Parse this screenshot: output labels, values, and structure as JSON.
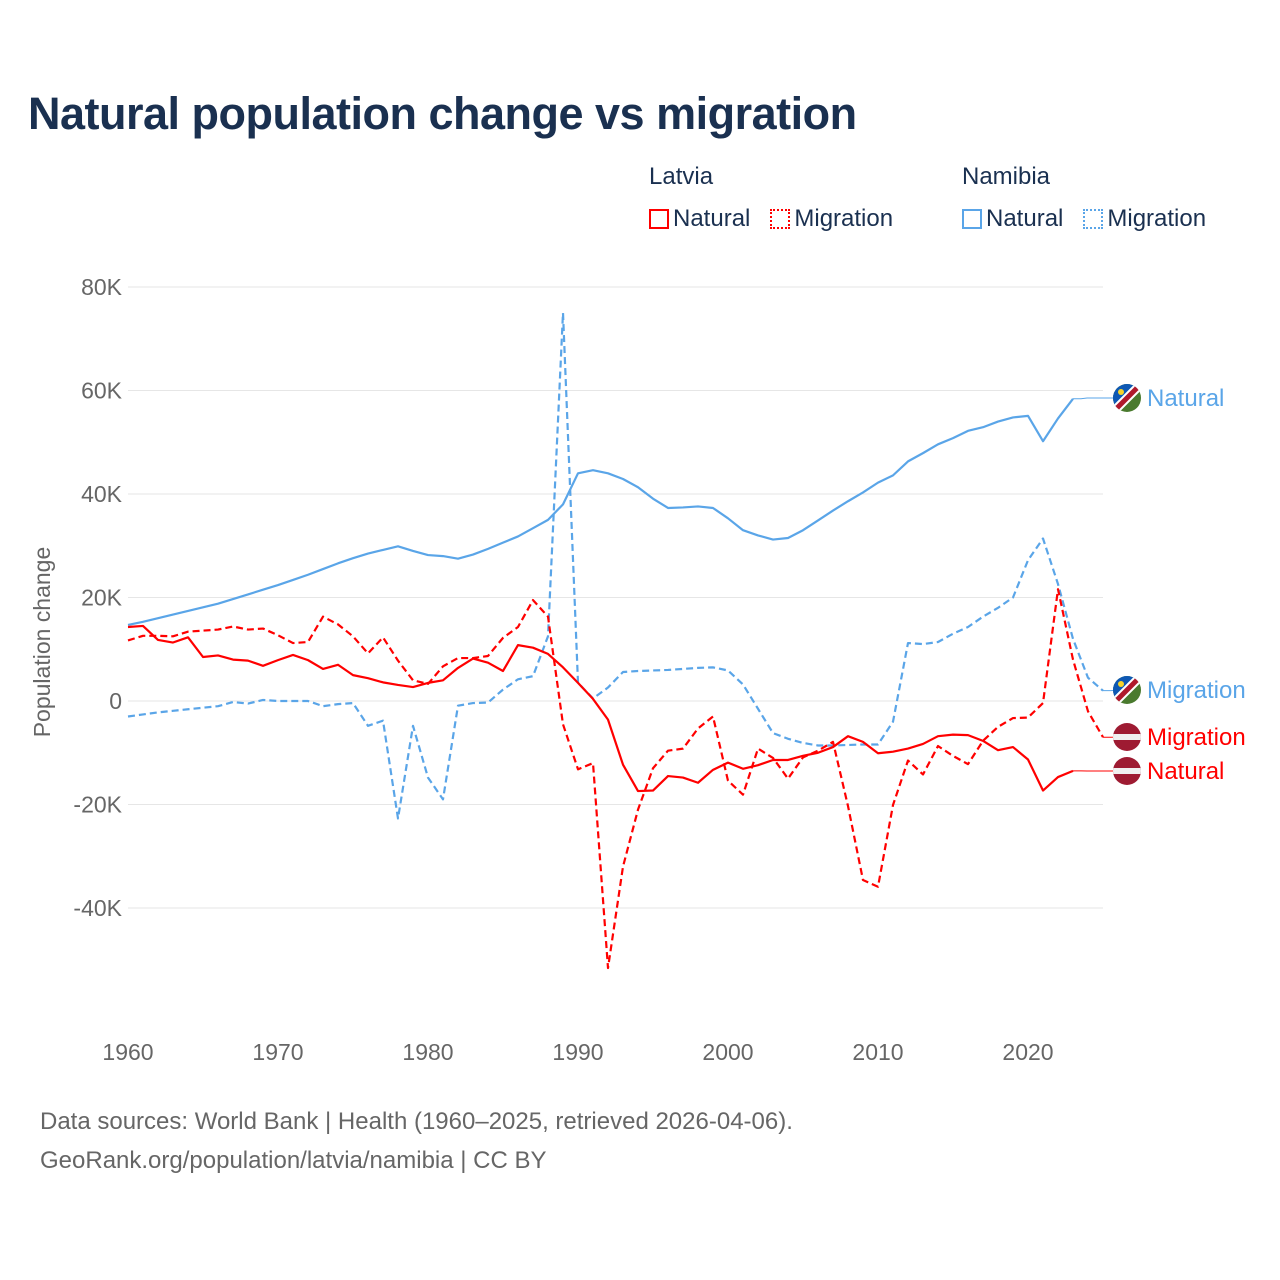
{
  "title": "Natural population change vs migration",
  "legend": {
    "groups": [
      {
        "country": "Latvia",
        "items": [
          {
            "label": "Natural",
            "style": "solid"
          },
          {
            "label": "Migration",
            "style": "dotted"
          }
        ],
        "color": "#ff0000"
      },
      {
        "country": "Namibia",
        "items": [
          {
            "label": "Natural",
            "style": "solid"
          },
          {
            "label": "Migration",
            "style": "dotted"
          }
        ],
        "color": "#5aa5e8"
      }
    ]
  },
  "footer": {
    "line1": "Data sources: World Bank | Health (1960–2025, retrieved 2026-04-06).",
    "line2": "GeoRank.org/population/latvia/namibia | CC BY"
  },
  "chart_data": {
    "type": "line",
    "title": "Natural population change vs migration",
    "xlabel": "",
    "ylabel": "Population change",
    "xlim": [
      1960,
      2025
    ],
    "ylim": [
      -55000,
      80000
    ],
    "yticks": [
      {
        "v": 80000,
        "label": "80K"
      },
      {
        "v": 60000,
        "label": "60K"
      },
      {
        "v": 40000,
        "label": "40K"
      },
      {
        "v": 20000,
        "label": "20K"
      },
      {
        "v": 0,
        "label": "0"
      },
      {
        "v": -20000,
        "label": "-20K"
      },
      {
        "v": -40000,
        "label": "-40K"
      }
    ],
    "xticks": [
      {
        "v": 1960,
        "label": "1960"
      },
      {
        "v": 1970,
        "label": "1970"
      },
      {
        "v": 1980,
        "label": "1980"
      },
      {
        "v": 1990,
        "label": "1990"
      },
      {
        "v": 2000,
        "label": "2000"
      },
      {
        "v": 2010,
        "label": "2010"
      },
      {
        "v": 2020,
        "label": "2020"
      }
    ],
    "grid": true,
    "legend_position": "top-right",
    "series": [
      {
        "name": "Namibia Natural",
        "end_label": "Natural",
        "flag": "namibia",
        "color": "#5aa5e8",
        "dash": false,
        "start": 1960,
        "values_k": [
          14.7,
          15.3,
          16.0,
          16.7,
          17.4,
          18.1,
          18.8,
          19.7,
          20.6,
          21.5,
          22.4,
          23.4,
          24.4,
          25.5,
          26.6,
          27.6,
          28.5,
          29.2,
          29.9,
          29.0,
          28.2,
          28.0,
          27.5,
          28.3,
          29.4,
          30.6,
          31.8,
          33.4,
          35.0,
          38.0,
          44.0,
          44.6,
          44.0,
          42.9,
          41.3,
          39.1,
          37.3,
          37.4,
          37.6,
          37.3,
          35.3,
          33.0,
          32.0,
          31.2,
          31.5,
          33.0,
          34.9,
          36.8,
          38.6,
          40.3,
          42.2,
          43.6,
          46.3,
          47.9,
          49.6,
          50.8,
          52.2,
          52.9,
          54.0,
          54.8,
          55.1,
          50.2,
          54.6,
          58.4
        ]
      },
      {
        "name": "Namibia Migration",
        "end_label": "Migration",
        "flag": "namibia",
        "color": "#5aa5e8",
        "dash": true,
        "start": 1960,
        "values_k": [
          -3.0,
          -2.6,
          -2.2,
          -1.9,
          -1.6,
          -1.3,
          -1.0,
          -0.2,
          -0.5,
          0.2,
          0,
          0,
          0,
          -1.0,
          -0.6,
          -0.4,
          -4.8,
          -3.8,
          -22.7,
          -4.8,
          -14.8,
          -19.0,
          -0.9,
          -0.4,
          -0.3,
          2.2,
          4.2,
          4.8,
          12.5,
          75.0,
          3.5,
          0.5,
          2.6,
          5.6,
          5.8,
          5.9,
          6.0,
          6.2,
          6.4,
          6.5,
          5.9,
          3.2,
          -1.5,
          -6.2,
          -7.3,
          -8.1,
          -8.6,
          -8.6,
          -8.5,
          -8.4,
          -8.4,
          -4.0,
          11.2,
          11.0,
          11.4,
          13.0,
          14.3,
          16.3,
          18.0,
          20.0,
          27.2,
          31.4,
          22.6,
          12.0,
          4.5,
          2.0
        ]
      },
      {
        "name": "Latvia Migration",
        "end_label": "Migration",
        "flag": "latvia",
        "color": "#ff0000",
        "dash": true,
        "start": 1960,
        "values_k": [
          11.7,
          12.6,
          12.6,
          12.5,
          13.4,
          13.6,
          13.8,
          14.4,
          13.8,
          14.0,
          12.7,
          11.2,
          11.4,
          16.3,
          14.8,
          12.5,
          9.2,
          12.3,
          7.8,
          4.0,
          3.3,
          6.7,
          8.3,
          8.3,
          8.7,
          12.2,
          14.3,
          19.5,
          16.3,
          -4.5,
          -13.2,
          -12.0,
          -51.6,
          -32.0,
          -21.0,
          -13.0,
          -9.6,
          -9.2,
          -5.3,
          -3.0,
          -15.4,
          -18.1,
          -9.2,
          -11.0,
          -15.0,
          -10.9,
          -9.6,
          -7.9,
          -20.3,
          -34.6,
          -35.9,
          -20.1,
          -11.5,
          -14.2,
          -8.7,
          -10.6,
          -12.2,
          -7.7,
          -5.0,
          -3.3,
          -3.2,
          -0.4,
          21.6,
          8.0,
          -2.0,
          -7.0
        ]
      },
      {
        "name": "Latvia Natural",
        "end_label": "Natural",
        "flag": "latvia",
        "color": "#ff0000",
        "dash": false,
        "start": 1960,
        "values_k": [
          14.3,
          14.5,
          11.8,
          11.3,
          12.3,
          8.5,
          8.8,
          8.0,
          7.8,
          6.8,
          7.9,
          8.9,
          7.9,
          6.2,
          7.0,
          5.0,
          4.4,
          3.6,
          3.1,
          2.7,
          3.5,
          4.0,
          6.4,
          8.2,
          7.4,
          5.8,
          10.8,
          10.3,
          9.1,
          6.5,
          3.5,
          0.4,
          -3.6,
          -12.3,
          -17.4,
          -17.3,
          -14.5,
          -14.8,
          -15.8,
          -13.3,
          -11.9,
          -13.1,
          -12.4,
          -11.4,
          -11.4,
          -10.6,
          -10.0,
          -8.9,
          -6.8,
          -7.9,
          -10.1,
          -9.8,
          -9.2,
          -8.3,
          -6.8,
          -6.5,
          -6.6,
          -7.7,
          -9.5,
          -8.9,
          -11.3,
          -17.3,
          -14.7,
          -13.5
        ]
      }
    ]
  }
}
